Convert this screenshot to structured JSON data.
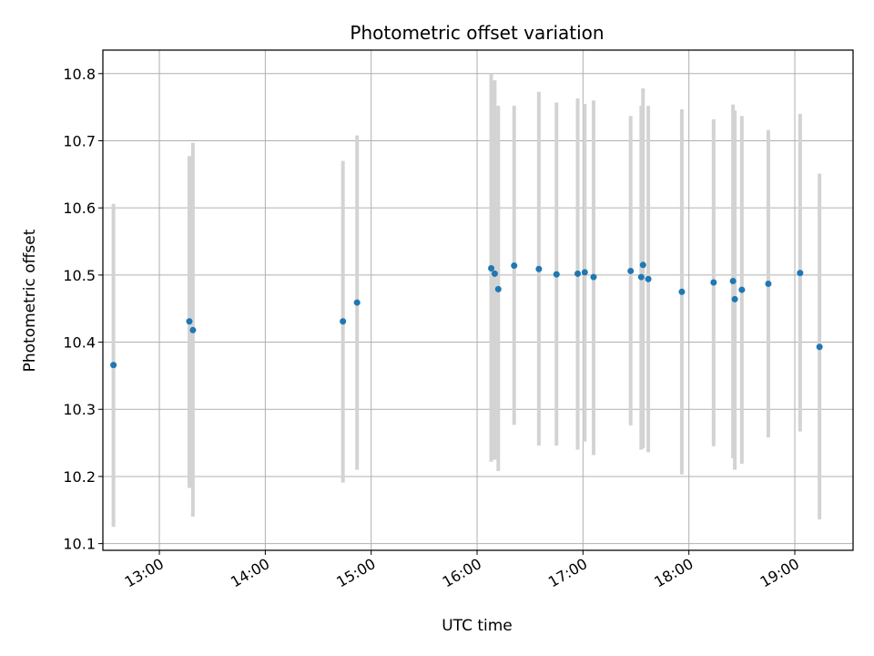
{
  "chart_data": {
    "type": "scatter",
    "title": "Photometric offset variation",
    "xlabel": "UTC time",
    "ylabel": "Photometric offset",
    "x_tick_labels": [
      "13:00",
      "14:00",
      "15:00",
      "16:00",
      "17:00",
      "18:00",
      "19:00"
    ],
    "y_tick_labels": [
      "10.1",
      "10.2",
      "10.3",
      "10.4",
      "10.5",
      "10.6",
      "10.7",
      "10.8"
    ],
    "xlim": [
      "12:28",
      "19:33"
    ],
    "ylim": [
      10.09,
      10.835
    ],
    "grid": true,
    "colors": {
      "point": "#1f77b4",
      "errorbar": "#d3d3d3",
      "grid": "#b0b0b0"
    },
    "series": [
      {
        "points": [
          {
            "x": "12:34",
            "y": 10.366,
            "low": 10.125,
            "high": 10.606
          },
          {
            "x": "13:17",
            "y": 10.431,
            "low": 10.183,
            "high": 10.677
          },
          {
            "x": "13:19",
            "y": 10.418,
            "low": 10.14,
            "high": 10.697
          },
          {
            "x": "14:44",
            "y": 10.431,
            "low": 10.191,
            "high": 10.67
          },
          {
            "x": "14:52",
            "y": 10.459,
            "low": 10.21,
            "high": 10.708
          },
          {
            "x": "16:08",
            "y": 10.51,
            "low": 10.222,
            "high": 10.8
          },
          {
            "x": "16:10",
            "y": 10.502,
            "low": 10.225,
            "high": 10.79
          },
          {
            "x": "16:12",
            "y": 10.479,
            "low": 10.208,
            "high": 10.752
          },
          {
            "x": "16:21",
            "y": 10.514,
            "low": 10.277,
            "high": 10.752
          },
          {
            "x": "16:35",
            "y": 10.509,
            "low": 10.246,
            "high": 10.773
          },
          {
            "x": "16:45",
            "y": 10.501,
            "low": 10.246,
            "high": 10.757
          },
          {
            "x": "16:57",
            "y": 10.502,
            "low": 10.24,
            "high": 10.763
          },
          {
            "x": "17:01",
            "y": 10.504,
            "low": 10.252,
            "high": 10.755
          },
          {
            "x": "17:06",
            "y": 10.497,
            "low": 10.232,
            "high": 10.76
          },
          {
            "x": "17:27",
            "y": 10.506,
            "low": 10.276,
            "high": 10.737
          },
          {
            "x": "17:33",
            "y": 10.497,
            "low": 10.24,
            "high": 10.752
          },
          {
            "x": "17:34",
            "y": 10.515,
            "low": 10.242,
            "high": 10.778
          },
          {
            "x": "17:37",
            "y": 10.494,
            "low": 10.236,
            "high": 10.752
          },
          {
            "x": "17:56",
            "y": 10.475,
            "low": 10.203,
            "high": 10.747
          },
          {
            "x": "18:14",
            "y": 10.489,
            "low": 10.245,
            "high": 10.732
          },
          {
            "x": "18:25",
            "y": 10.491,
            "low": 10.227,
            "high": 10.754
          },
          {
            "x": "18:26",
            "y": 10.464,
            "low": 10.21,
            "high": 10.745
          },
          {
            "x": "18:30",
            "y": 10.478,
            "low": 10.219,
            "high": 10.737
          },
          {
            "x": "18:45",
            "y": 10.487,
            "low": 10.258,
            "high": 10.716
          },
          {
            "x": "19:03",
            "y": 10.503,
            "low": 10.267,
            "high": 10.74
          },
          {
            "x": "19:14",
            "y": 10.393,
            "low": 10.136,
            "high": 10.651
          }
        ]
      }
    ]
  }
}
